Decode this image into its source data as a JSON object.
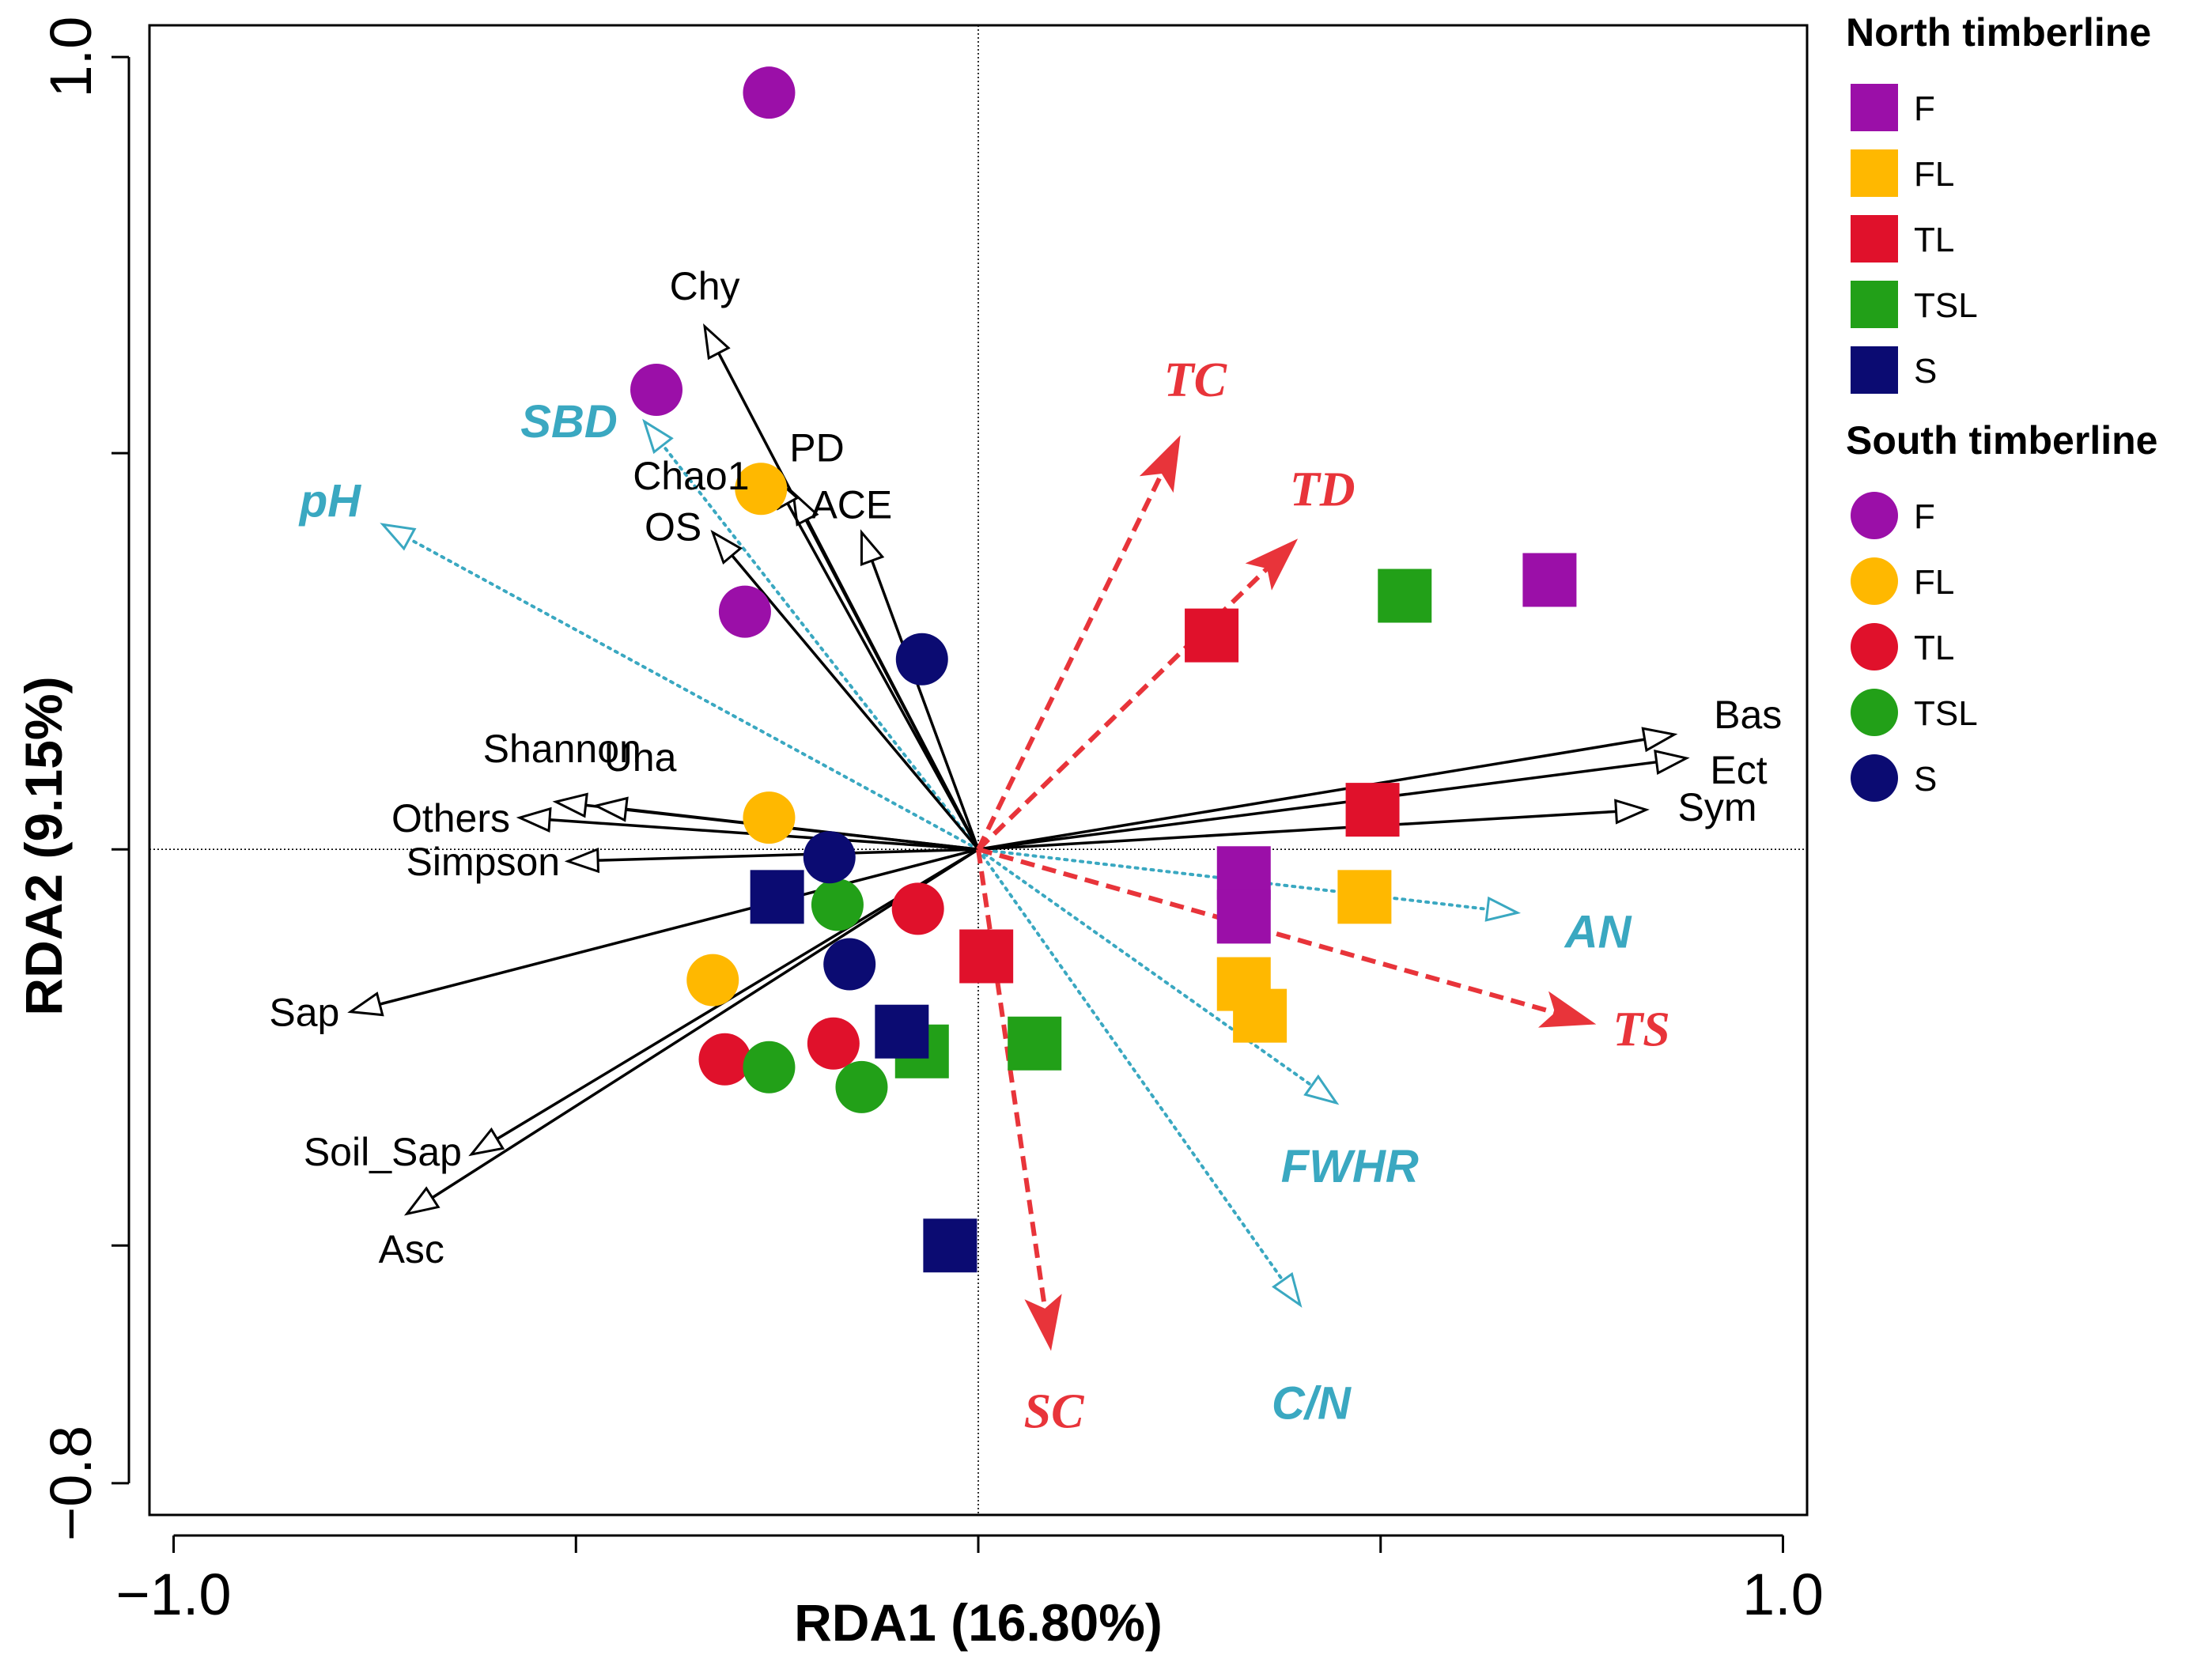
{
  "chart_data": {
    "type": "scatter",
    "title": "",
    "xlabel": "RDA1 (16.80%)",
    "ylabel": "RDA2 (9.15%)",
    "xlim": [
      -1.03,
      1.03
    ],
    "ylim": [
      -0.84,
      1.04
    ],
    "x_ticks": [
      {
        "value": -1.0,
        "label": "−1.0"
      },
      {
        "value": -0.5,
        "label": ""
      },
      {
        "value": 0.0,
        "label": ""
      },
      {
        "value": 0.5,
        "label": ""
      },
      {
        "value": 1.0,
        "label": "1.0"
      }
    ],
    "y_ticks": [
      {
        "value": 1.0,
        "label": "1.0"
      },
      {
        "value": 0.5,
        "label": ""
      },
      {
        "value": 0.0,
        "label": ""
      },
      {
        "value": -0.5,
        "label": ""
      },
      {
        "value": -0.8,
        "label": "−0.8"
      }
    ],
    "zero_lines": true,
    "colors": {
      "F": "#9b0fa8",
      "FL": "#ffb800",
      "TL": "#e0112b",
      "TSL": "#22a018",
      "S": "#0b0b72",
      "species_arrow": "#000000",
      "soil_arrow": "#3aa8c1",
      "plant_arrow": "#e8343a"
    },
    "legend": {
      "position": "right",
      "groups": [
        {
          "title": "North timberline",
          "marker": "square",
          "items": [
            "F",
            "FL",
            "TL",
            "TSL",
            "S"
          ]
        },
        {
          "title": "South timberline",
          "marker": "circle",
          "items": [
            "F",
            "FL",
            "TL",
            "TSL",
            "S"
          ]
        }
      ]
    },
    "series": [
      {
        "name": "North F",
        "marker": "square",
        "group": "F",
        "points": [
          [
            0.33,
            -0.03
          ],
          [
            0.33,
            -0.085
          ],
          [
            0.71,
            0.34
          ]
        ]
      },
      {
        "name": "North FL",
        "marker": "square",
        "group": "FL",
        "points": [
          [
            0.48,
            -0.06
          ],
          [
            0.33,
            -0.17
          ],
          [
            0.35,
            -0.21
          ]
        ]
      },
      {
        "name": "North TL",
        "marker": "square",
        "group": "TL",
        "points": [
          [
            0.29,
            0.27
          ],
          [
            0.49,
            0.05
          ],
          [
            0.01,
            -0.135
          ]
        ]
      },
      {
        "name": "North TSL",
        "marker": "square",
        "group": "TSL",
        "points": [
          [
            0.53,
            0.32
          ],
          [
            -0.07,
            -0.255
          ],
          [
            0.07,
            -0.245
          ]
        ]
      },
      {
        "name": "North S",
        "marker": "square",
        "group": "S",
        "points": [
          [
            -0.25,
            -0.06
          ],
          [
            -0.095,
            -0.23
          ],
          [
            -0.035,
            -0.5
          ]
        ]
      },
      {
        "name": "South F",
        "marker": "circle",
        "group": "F",
        "points": [
          [
            -0.26,
            0.955
          ],
          [
            -0.4,
            0.58
          ],
          [
            -0.29,
            0.3
          ]
        ]
      },
      {
        "name": "South FL",
        "marker": "circle",
        "group": "FL",
        "points": [
          [
            -0.27,
            0.455
          ],
          [
            -0.26,
            0.04
          ],
          [
            -0.33,
            -0.165
          ]
        ]
      },
      {
        "name": "South TL",
        "marker": "circle",
        "group": "TL",
        "points": [
          [
            -0.075,
            -0.075
          ],
          [
            -0.315,
            -0.265
          ],
          [
            -0.18,
            -0.245
          ]
        ]
      },
      {
        "name": "South TSL",
        "marker": "circle",
        "group": "TSL",
        "points": [
          [
            -0.175,
            -0.07
          ],
          [
            -0.26,
            -0.275
          ],
          [
            -0.145,
            -0.3
          ]
        ]
      },
      {
        "name": "South S",
        "marker": "circle",
        "group": "S",
        "points": [
          [
            -0.185,
            -0.01
          ],
          [
            -0.07,
            0.24
          ],
          [
            -0.16,
            -0.145
          ]
        ]
      }
    ],
    "species_vectors": [
      {
        "name": "Chy",
        "x": -0.34,
        "y": 0.66
      },
      {
        "name": "PD",
        "x": -0.23,
        "y": 0.45
      },
      {
        "name": "Chao1",
        "x": -0.255,
        "y": 0.47
      },
      {
        "name": "ACE",
        "x": -0.145,
        "y": 0.4
      },
      {
        "name": "OS",
        "x": -0.33,
        "y": 0.4
      },
      {
        "name": "Shannon",
        "x": -0.525,
        "y": 0.06
      },
      {
        "name": "Una",
        "x": -0.475,
        "y": 0.055
      },
      {
        "name": "Others",
        "x": -0.57,
        "y": 0.04
      },
      {
        "name": "Simpson",
        "x": -0.51,
        "y": -0.015
      },
      {
        "name": "Sap",
        "x": -0.78,
        "y": -0.205
      },
      {
        "name": "Soil_Sap",
        "x": -0.63,
        "y": -0.385
      },
      {
        "name": "Asc",
        "x": -0.71,
        "y": -0.46
      },
      {
        "name": "Bas",
        "x": 0.865,
        "y": 0.145
      },
      {
        "name": "Ect",
        "x": 0.88,
        "y": 0.115
      },
      {
        "name": "Sym",
        "x": 0.83,
        "y": 0.05
      }
    ],
    "soil_vectors": [
      {
        "name": "SBD",
        "x": -0.415,
        "y": 0.54
      },
      {
        "name": "pH",
        "x": -0.74,
        "y": 0.41
      },
      {
        "name": "AN",
        "x": 0.67,
        "y": -0.08
      },
      {
        "name": "FWHR",
        "x": 0.445,
        "y": -0.32
      },
      {
        "name": "C/N",
        "x": 0.4,
        "y": -0.575
      }
    ],
    "plant_vectors": [
      {
        "name": "TC",
        "x": 0.25,
        "y": 0.52
      },
      {
        "name": "TD",
        "x": 0.395,
        "y": 0.39
      },
      {
        "name": "TS",
        "x": 0.765,
        "y": -0.22
      },
      {
        "name": "SC",
        "x": 0.09,
        "y": -0.63
      }
    ]
  }
}
